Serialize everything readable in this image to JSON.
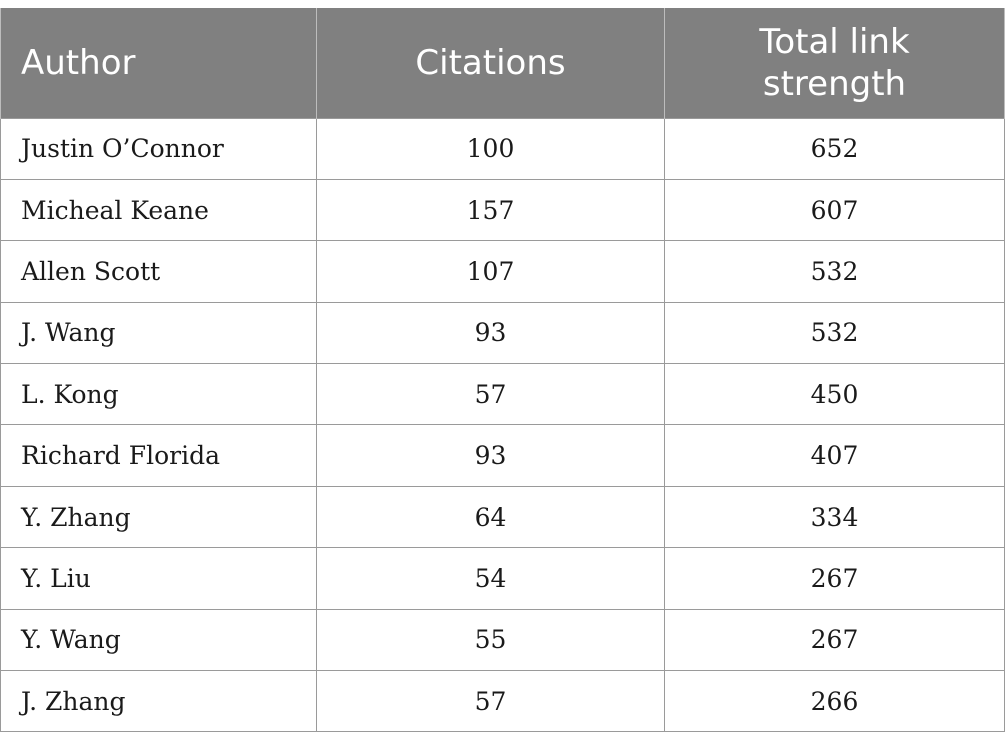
{
  "table": {
    "headers": [
      "Author",
      "Citations",
      "Total link strength"
    ],
    "rows": [
      [
        "Justin O’Connor",
        "100",
        "652"
      ],
      [
        "Micheal Keane",
        "157",
        "607"
      ],
      [
        "Allen Scott",
        "107",
        "532"
      ],
      [
        "J. Wang",
        "93",
        "532"
      ],
      [
        "L. Kong",
        "57",
        "450"
      ],
      [
        "Richard Florida",
        "93",
        "407"
      ],
      [
        "Y. Zhang",
        "64",
        "334"
      ],
      [
        "Y. Liu",
        "54",
        "267"
      ],
      [
        "Y. Wang",
        "55",
        "267"
      ],
      [
        "J. Zhang",
        "57",
        "266"
      ]
    ]
  },
  "colors": {
    "header_bg": "#808080",
    "header_text": "#ffffff",
    "grid": "#9a9a9a"
  }
}
